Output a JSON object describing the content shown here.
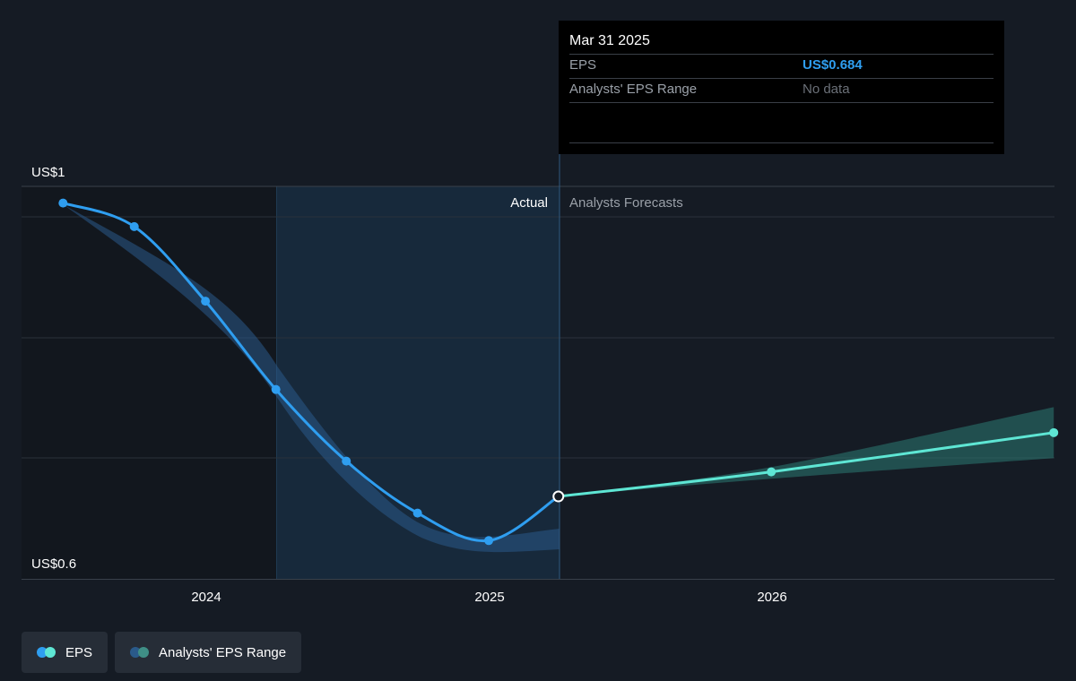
{
  "chart_data": {
    "type": "line",
    "y_axis": {
      "ylim": [
        0.6,
        1.0
      ],
      "tick_labels": [
        "US$1",
        "US$0.6"
      ]
    },
    "x_axis": {
      "tick_labels": [
        "2024",
        "2025",
        "2026"
      ]
    },
    "region_labels": {
      "actual": "Actual",
      "forecast": "Analysts Forecasts"
    },
    "divider_date": "2025-03-31",
    "series": [
      {
        "name": "EPS",
        "kind": "actual",
        "color": "#2f9ef0",
        "points": [
          {
            "x": "2023-06-30",
            "y": 0.983
          },
          {
            "x": "2023-09-30",
            "y": 0.959
          },
          {
            "x": "2023-12-31",
            "y": 0.883
          },
          {
            "x": "2024-03-31",
            "y": 0.793
          },
          {
            "x": "2024-06-30",
            "y": 0.72
          },
          {
            "x": "2024-09-30",
            "y": 0.667
          },
          {
            "x": "2024-12-31",
            "y": 0.639
          },
          {
            "x": "2025-03-31",
            "y": 0.684
          }
        ]
      },
      {
        "name": "EPS",
        "kind": "forecast",
        "color": "#5ee6d4",
        "points": [
          {
            "x": "2025-03-31",
            "y": 0.684
          },
          {
            "x": "2025-12-31",
            "y": 0.709
          },
          {
            "x": "2026-12-31",
            "y": 0.749
          }
        ]
      },
      {
        "name": "Analysts' EPS Range",
        "kind": "range",
        "color": "#2b7a72",
        "upper": [
          {
            "x": "2025-03-31",
            "y": 0.684
          },
          {
            "x": "2025-12-31",
            "y": 0.714
          },
          {
            "x": "2026-12-31",
            "y": 0.775
          }
        ],
        "lower": [
          {
            "x": "2025-03-31",
            "y": 0.684
          },
          {
            "x": "2025-12-31",
            "y": 0.702
          },
          {
            "x": "2026-12-31",
            "y": 0.723
          }
        ]
      }
    ],
    "tooltip": {
      "date": "Mar 31 2025",
      "rows": [
        {
          "label": "EPS",
          "value": "US$0.684"
        },
        {
          "label": "Analysts' EPS Range",
          "value": "No data"
        }
      ]
    },
    "legend": [
      {
        "label": "EPS",
        "colors": [
          "#2f9ef0",
          "#5ee6d4"
        ]
      },
      {
        "label": "Analysts' EPS Range",
        "colors": [
          "#2a5a8a",
          "#3f8f86"
        ]
      }
    ]
  }
}
